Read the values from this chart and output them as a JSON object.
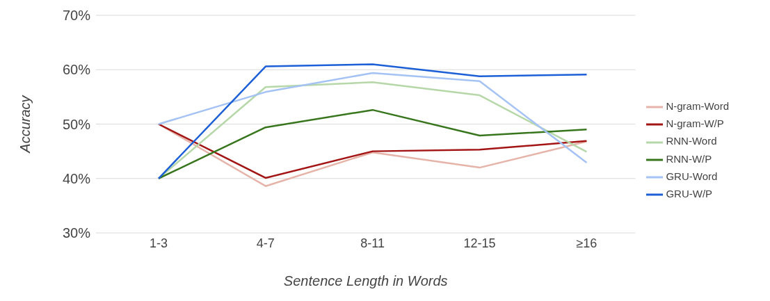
{
  "chart_data": {
    "type": "line",
    "xlabel": "Sentence Length in Words",
    "ylabel": "Accuracy",
    "categories": [
      "1-3",
      "4-7",
      "8-11",
      "12-15",
      "≥16"
    ],
    "series": [
      {
        "name": "N-gram-Word",
        "color": "#e6b3a9",
        "values": [
          50,
          38.6,
          44.8,
          42.0,
          46.8
        ]
      },
      {
        "name": "N-gram-W/P",
        "color": "#a31515",
        "values": [
          50,
          40.1,
          45.0,
          45.3,
          46.9
        ]
      },
      {
        "name": "RNN-Word",
        "color": "#b6d7a8",
        "values": [
          40,
          56.8,
          57.7,
          55.3,
          44.9
        ]
      },
      {
        "name": "RNN-W/P",
        "color": "#38761d",
        "values": [
          40,
          49.4,
          52.6,
          47.9,
          49.0
        ]
      },
      {
        "name": "GRU-Word",
        "color": "#a4c2f4",
        "values": [
          50,
          55.9,
          59.4,
          57.9,
          42.9
        ]
      },
      {
        "name": "GRU-W/P",
        "color": "#1c5fd6",
        "values": [
          40,
          60.6,
          61.0,
          58.8,
          59.1
        ]
      }
    ],
    "ylim": [
      30,
      70
    ],
    "yticks": [
      {
        "value": 30,
        "label": "30%"
      },
      {
        "value": 40,
        "label": "40%"
      },
      {
        "value": 50,
        "label": "50%"
      },
      {
        "value": 60,
        "label": "60%"
      },
      {
        "value": 70,
        "label": "70%"
      }
    ],
    "grid": "y",
    "legend": "right",
    "marker": "none",
    "line_style": "solid"
  }
}
